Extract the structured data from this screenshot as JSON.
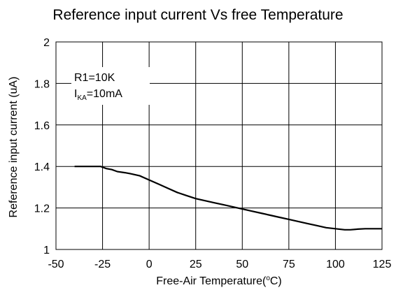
{
  "chart_data": {
    "type": "line",
    "title": "Reference input current Vs free Temperature",
    "xlabel": "Free-Air Temperature(°C)",
    "xlabel_main": "Free-Air Temperature(",
    "xlabel_sup": "o",
    "xlabel_tail": "C)",
    "ylabel": "Reference input current (uA)",
    "xlim": [
      -50,
      125
    ],
    "ylim": [
      1,
      2
    ],
    "xticks": [
      -50,
      -25,
      0,
      25,
      50,
      75,
      100,
      125
    ],
    "yticks": [
      1,
      1.2,
      1.4,
      1.6,
      1.8,
      2
    ],
    "ytick_labels": [
      "1",
      "1.2",
      "1.4",
      "1.6",
      "1.8",
      "2"
    ],
    "grid": true,
    "annotations": {
      "line1": "R1=10K",
      "line2_prefix": "I",
      "line2_sub": "KA",
      "line2_suffix": "=10mA"
    },
    "series": [
      {
        "color": "#000000",
        "x": [
          -40,
          -35,
          -30,
          -26,
          -23,
          -20,
          -17,
          -13,
          -10,
          -5,
          0,
          5,
          10,
          15,
          20,
          25,
          30,
          35,
          40,
          45,
          50,
          55,
          60,
          65,
          70,
          75,
          80,
          85,
          90,
          95,
          100,
          105,
          108,
          112,
          116,
          120,
          125
        ],
        "y": [
          1.4,
          1.4,
          1.4,
          1.4,
          1.39,
          1.385,
          1.375,
          1.37,
          1.365,
          1.355,
          1.335,
          1.315,
          1.295,
          1.275,
          1.26,
          1.245,
          1.235,
          1.225,
          1.215,
          1.205,
          1.195,
          1.185,
          1.175,
          1.165,
          1.155,
          1.145,
          1.135,
          1.125,
          1.115,
          1.105,
          1.1,
          1.095,
          1.095,
          1.098,
          1.1,
          1.1,
          1.1
        ]
      }
    ]
  }
}
